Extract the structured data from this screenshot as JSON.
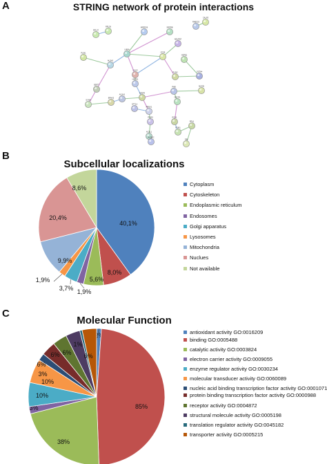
{
  "panels": {
    "a": {
      "letter": "A",
      "title": "STRING network of protein interactions"
    },
    "b": {
      "letter": "B",
      "title": "Subcellular localizations"
    },
    "c": {
      "letter": "C",
      "title": "Molecular Function"
    }
  },
  "network": {
    "nodes": [
      {
        "id": "CALR3",
        "color": "#d7e8a6"
      },
      {
        "id": "RAB5C6",
        "color": "#b8c9ea"
      },
      {
        "id": "RPL36",
        "color": "#c9eab0"
      },
      {
        "id": "RPL37",
        "color": "#c9eab0"
      },
      {
        "id": "MRPS36",
        "color": "#b5ccf0"
      },
      {
        "id": "SRPRB",
        "color": "#b5e0c4"
      },
      {
        "id": "NDUFB7",
        "color": "#c6b3e6"
      },
      {
        "id": "PLIN1",
        "color": "#d2e6a4"
      },
      {
        "id": "LMNA",
        "color": "#a8d8cf"
      },
      {
        "id": "ALDH1",
        "color": "#b7d7e5"
      },
      {
        "id": "CD36",
        "color": "#d9e6a6"
      },
      {
        "id": "HSPB1",
        "color": "#bde2b1"
      },
      {
        "id": "CALR",
        "color": "#dfb3ad"
      },
      {
        "id": "PLIN2",
        "color": "#d0d9a3"
      },
      {
        "id": "GSTA4",
        "color": "#a7b0e0"
      },
      {
        "id": "SEPT7",
        "color": "#c2cfb8"
      },
      {
        "id": "ACAA1",
        "color": "#bcc6e2"
      },
      {
        "id": "FABP4",
        "color": "#cfd9a2"
      },
      {
        "id": "PHB",
        "color": "#b8c5e8"
      },
      {
        "id": "MAOB",
        "color": "#d8e3a8"
      },
      {
        "id": "EPHX2",
        "color": "#d7d7a8"
      },
      {
        "id": "SYNM",
        "color": "#c9e3bd"
      },
      {
        "id": "PRDX1",
        "color": "#ccd1ea"
      },
      {
        "id": "CPT1A",
        "color": "#bcc1e6"
      },
      {
        "id": "PDIA3",
        "color": "#c9c1e8"
      },
      {
        "id": "DECR1",
        "color": "#b9e2c0"
      },
      {
        "id": "ECH1",
        "color": "#c9d6a4"
      },
      {
        "id": "ACSL1",
        "color": "#b4d9cc"
      },
      {
        "id": "PGM1",
        "color": "#c6e2b2"
      },
      {
        "id": "ALDOC",
        "color": "#b9c1eb"
      },
      {
        "id": "PPA1",
        "color": "#c8d9a5"
      },
      {
        "id": "HSPD1",
        "color": "#bcc9ea"
      },
      {
        "id": "DBI",
        "color": "#dce8b6"
      }
    ]
  },
  "chart_data": [
    {
      "type": "pie",
      "title": "Subcellular localizations",
      "categories": [
        "Cytoplasm",
        "Cytoskeleton",
        "Endoplasmic reticulum",
        "Endosomes",
        "Golgi apparatus",
        "Lysosomes",
        "Mitochondria",
        "Nuclues",
        "Not available"
      ],
      "values": [
        40.1,
        8.0,
        5.6,
        1.9,
        3.7,
        1.9,
        9.9,
        20.4,
        8.6
      ],
      "labels": [
        "40,1%",
        "8,0%",
        "5,6%",
        "1,9%",
        "3,7%",
        "1,9%",
        "9,9%",
        "20,4%",
        "8,6%"
      ],
      "colors": [
        "#4f81bd",
        "#c0504d",
        "#9bbb59",
        "#8064a2",
        "#4bacc6",
        "#f79646",
        "#95b3d7",
        "#d99594",
        "#c3d69b"
      ],
      "legend_position": "right"
    },
    {
      "type": "pie",
      "title": "Molecular Function",
      "categories": [
        "antioxidant activity GO:0016209",
        "binding GO:0005488",
        "catalytic activity GO:0003824",
        "electron carrier activity GO:0009055",
        "enzyme regulator activity GO:0030234",
        "molecular transducer activity GO:0060089",
        "nucleic acid binding transcription factor activity GO:0001071",
        "protein binding transcription factor activity GO:0000988",
        "receptor activity GO:0004872",
        "structural molecule activity GO:0005198",
        "translation regulator activity GO:0045182",
        "transporter activity GO:0005215"
      ],
      "values": [
        2,
        85,
        38,
        3,
        10,
        10,
        3,
        6,
        6,
        6,
        1,
        6
      ],
      "labels": [
        "2%",
        "85%",
        "38%",
        "3%",
        "10%",
        "10%",
        "3%",
        "6%",
        "6%",
        "6%",
        "1%",
        "6%"
      ],
      "colors": [
        "#4f81bd",
        "#c0504d",
        "#9bbb59",
        "#8064a2",
        "#4bacc6",
        "#f79646",
        "#2c4d75",
        "#772c2a",
        "#5f7530",
        "#4d3b62",
        "#276a7c",
        "#b65708"
      ],
      "legend_position": "right"
    }
  ]
}
